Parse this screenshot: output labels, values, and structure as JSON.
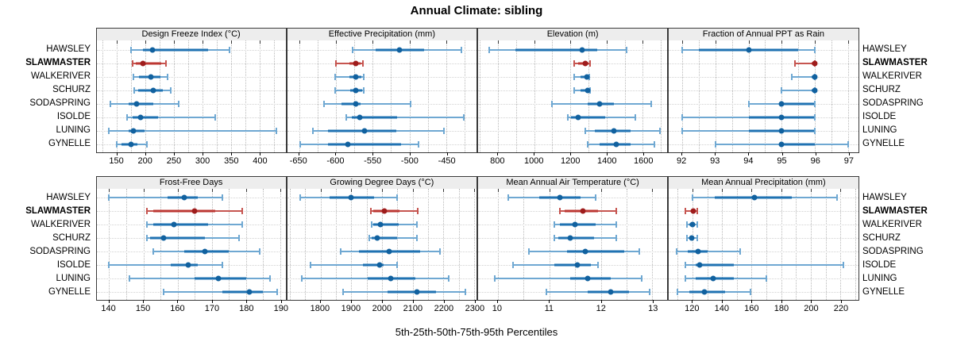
{
  "title": "Annual Climate: sibling",
  "caption": "5th-25th-50th-75th-95th Percentiles",
  "stations": [
    "HAWSLEY",
    "SLAWMASTER",
    "WALKERIVER",
    "SCHURZ",
    "SODASPRING",
    "ISOLDE",
    "LUNING",
    "GYNELLE"
  ],
  "highlight_station": "SLAWMASTER",
  "colors": {
    "normal": {
      "thin": "#6fa8d2",
      "thick": "#1f72b2",
      "dot": "#11619f"
    },
    "highlight": {
      "thin": "#c65550",
      "thick": "#bc3732",
      "dot": "#9e1c1c"
    },
    "grid": "#b9b9b9",
    "strip_bg": "#ededed",
    "border": "#3a3a3a"
  },
  "chart_data": {
    "type": "interval",
    "percentile_labels": [
      "5th",
      "25th",
      "50th",
      "75th",
      "95th"
    ],
    "panels": [
      {
        "title": "Design Freeze Index (°C)",
        "xlim": [
          114,
          446
        ],
        "ticks": [
          150,
          200,
          250,
          300,
          350,
          400
        ],
        "values": [
          [
            175,
            195,
            212,
            310,
            347
          ],
          [
            177,
            183,
            196,
            228,
            236
          ],
          [
            179,
            188,
            210,
            226,
            239
          ],
          [
            180,
            187,
            214,
            231,
            244
          ],
          [
            138,
            171,
            185,
            213,
            258
          ],
          [
            168,
            177,
            192,
            222,
            322
          ],
          [
            135,
            170,
            179,
            198,
            430
          ],
          [
            149,
            158,
            174,
            186,
            203
          ]
        ]
      },
      {
        "title": "Effective Precipitation (mm)",
        "xlim": [
          -666,
          -409
        ],
        "ticks": [
          -650,
          -600,
          -550,
          -500,
          -450
        ],
        "values": [
          [
            -577,
            -546,
            -514,
            -480,
            -429
          ],
          [
            -600,
            -582,
            -573,
            -566,
            -563
          ],
          [
            -601,
            -582,
            -573,
            -565,
            -562
          ],
          [
            -601,
            -581,
            -573,
            -564,
            -562
          ],
          [
            -616,
            -592,
            -573,
            -567,
            -498
          ],
          [
            -586,
            -578,
            -568,
            -517,
            -426
          ],
          [
            -631,
            -611,
            -561,
            -518,
            -453
          ],
          [
            -649,
            -611,
            -584,
            -511,
            -488
          ]
        ]
      },
      {
        "title": "Elevation (m)",
        "xlim": [
          690,
          1735
        ],
        "ticks": [
          800,
          1000,
          1200,
          1400,
          1600
        ],
        "values": [
          [
            750,
            895,
            1263,
            1350,
            1512
          ],
          [
            1220,
            1243,
            1280,
            1300,
            1310
          ],
          [
            1222,
            1255,
            1290,
            1302,
            1306
          ],
          [
            1222,
            1258,
            1294,
            1303,
            1307
          ],
          [
            1100,
            1295,
            1360,
            1440,
            1645
          ],
          [
            1184,
            1205,
            1243,
            1390,
            1560
          ],
          [
            1280,
            1335,
            1442,
            1530,
            1693
          ],
          [
            1297,
            1360,
            1452,
            1530,
            1663
          ]
        ]
      },
      {
        "title": "Fraction of Annual PPT as Rain",
        "xlim": [
          91.6,
          97.3
        ],
        "ticks": [
          92,
          93,
          94,
          95,
          96,
          97
        ],
        "values": [
          [
            92,
            92.5,
            94,
            95.5,
            96
          ],
          [
            95.4,
            95.9,
            96,
            96,
            96
          ],
          [
            95.3,
            95.9,
            96,
            96,
            96
          ],
          [
            95,
            95.9,
            96,
            96,
            96
          ],
          [
            94,
            95,
            95,
            96,
            96
          ],
          [
            92,
            94,
            95,
            96,
            96
          ],
          [
            92,
            94,
            95,
            96,
            96
          ],
          [
            93,
            95,
            95,
            96,
            97
          ]
        ]
      },
      {
        "title": "Frost-Free Days",
        "xlim": [
          136.3,
          191.6
        ],
        "ticks": [
          140,
          150,
          160,
          170,
          180,
          190
        ],
        "values": [
          [
            140,
            157,
            162,
            166,
            173
          ],
          [
            151,
            153,
            165,
            171,
            179
          ],
          [
            151,
            153,
            159,
            169,
            179
          ],
          [
            151,
            152,
            156,
            168,
            178
          ],
          [
            153,
            162,
            168,
            175,
            184
          ],
          [
            140,
            158,
            163,
            166,
            173
          ],
          [
            146,
            165,
            172,
            180,
            187
          ],
          [
            156,
            173,
            181,
            185,
            189
          ]
        ]
      },
      {
        "title": "Growing Degree Days (°C)",
        "xlim": [
          1692,
          2308
        ],
        "ticks": [
          1800,
          1900,
          2000,
          2100,
          2200,
          2300
        ],
        "values": [
          [
            1735,
            1830,
            1900,
            1975,
            2050
          ],
          [
            1964,
            1972,
            2009,
            2057,
            2117
          ],
          [
            1966,
            1973,
            1994,
            2055,
            2113
          ],
          [
            1958,
            1966,
            1985,
            2049,
            2113
          ],
          [
            1866,
            1925,
            2023,
            2125,
            2190
          ],
          [
            1768,
            1938,
            1992,
            2005,
            2049
          ],
          [
            1738,
            1955,
            2030,
            2108,
            2218
          ],
          [
            1874,
            2019,
            2115,
            2177,
            2273
          ]
        ]
      },
      {
        "title": "Mean Annual Air Temperature (°C)",
        "xlim": [
          9.62,
          13.29
        ],
        "ticks": [
          10,
          11,
          12,
          13
        ],
        "values": [
          [
            10.2,
            10.8,
            11.2,
            11.6,
            11.9
          ],
          [
            11.2,
            11.3,
            11.65,
            11.95,
            12.3
          ],
          [
            11.1,
            11.2,
            11.5,
            11.9,
            12.3
          ],
          [
            11.1,
            11.17,
            11.4,
            11.87,
            12.3
          ],
          [
            10.6,
            11.35,
            11.7,
            12.45,
            12.75
          ],
          [
            10.3,
            11.1,
            11.55,
            11.8,
            11.95
          ],
          [
            9.95,
            11.4,
            11.75,
            12.2,
            12.8
          ],
          [
            10.95,
            11.75,
            12.2,
            12.55,
            12.95
          ]
        ]
      },
      {
        "title": "Mean Annual Precipitation (mm)",
        "xlim": [
          104,
          232
        ],
        "ticks": [
          120,
          140,
          160,
          180,
          200,
          220
        ],
        "values": [
          [
            120,
            135,
            162,
            187,
            218
          ],
          [
            115,
            119,
            120.5,
            122,
            123
          ],
          [
            116,
            118,
            120,
            121.5,
            123
          ],
          [
            116,
            118,
            119.5,
            121,
            123
          ],
          [
            109,
            117,
            124,
            130,
            152
          ],
          [
            115,
            122,
            125,
            148,
            222
          ],
          [
            115,
            122,
            134,
            148,
            170
          ],
          [
            110,
            118,
            128,
            142,
            159
          ]
        ]
      }
    ]
  }
}
